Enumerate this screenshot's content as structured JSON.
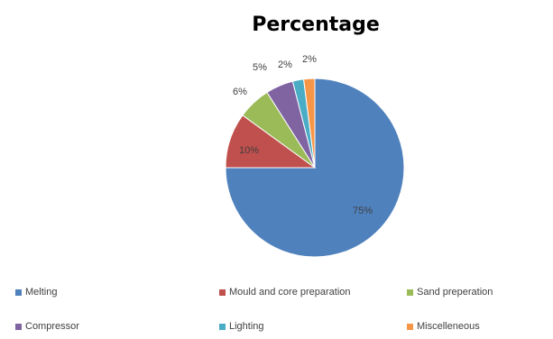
{
  "chart_data": {
    "type": "pie",
    "title": "Percentage",
    "categories": [
      "Melting",
      "Mould and core preparation",
      "Sand preperation",
      "Compressor",
      "Lighting",
      "Miscelleneous"
    ],
    "values": [
      75,
      10,
      6,
      5,
      2,
      2
    ],
    "labels": [
      "75%",
      "10%",
      "6%",
      "5%",
      "2%",
      "2%"
    ],
    "colors": [
      "#4F81BD",
      "#C0504D",
      "#9BBB59",
      "#8064A2",
      "#4BACC6",
      "#F79646"
    ],
    "legend_position": "bottom"
  }
}
